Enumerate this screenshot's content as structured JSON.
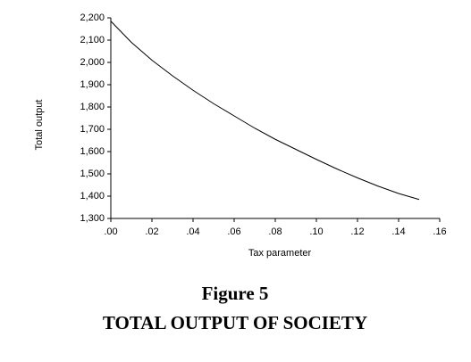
{
  "chart_data": {
    "type": "line",
    "x_label": "Tax parameter",
    "y_label": "Total output",
    "caption_number": "Figure 5",
    "caption_title": "TOTAL OUTPUT OF SOCIETY",
    "x": [
      0,
      0.01,
      0.02,
      0.03,
      0.04,
      0.05,
      0.06,
      0.07,
      0.08,
      0.09,
      0.1,
      0.11,
      0.12,
      0.13,
      0.14,
      0.15
    ],
    "values": [
      2185,
      2090,
      2010,
      1940,
      1875,
      1815,
      1760,
      1705,
      1655,
      1610,
      1565,
      1522,
      1482,
      1445,
      1412,
      1385
    ],
    "color": "#000000",
    "xlim": [
      0,
      0.16
    ],
    "xticks": [
      {
        "value": 0,
        "label": ".00"
      },
      {
        "value": 0.02,
        "label": ".02"
      },
      {
        "value": 0.04,
        "label": ".04"
      },
      {
        "value": 0.06,
        "label": ".06"
      },
      {
        "value": 0.08,
        "label": ".08"
      },
      {
        "value": 0.1,
        "label": ".10"
      },
      {
        "value": 0.12,
        "label": ".12"
      },
      {
        "value": 0.14,
        "label": ".14"
      },
      {
        "value": 0.16,
        "label": ".16"
      }
    ],
    "ylim": [
      1300,
      2200
    ],
    "yticks": [
      {
        "value": 1300,
        "label": "1,300"
      },
      {
        "value": 1400,
        "label": "1,400"
      },
      {
        "value": 1500,
        "label": "1,500"
      },
      {
        "value": 1600,
        "label": "1,600"
      },
      {
        "value": 1700,
        "label": "1,700"
      },
      {
        "value": 1800,
        "label": "1,800"
      },
      {
        "value": 1900,
        "label": "1,900"
      },
      {
        "value": 2000,
        "label": "2,000"
      },
      {
        "value": 2100,
        "label": "2,100"
      },
      {
        "value": 2200,
        "label": "2,200"
      }
    ]
  }
}
